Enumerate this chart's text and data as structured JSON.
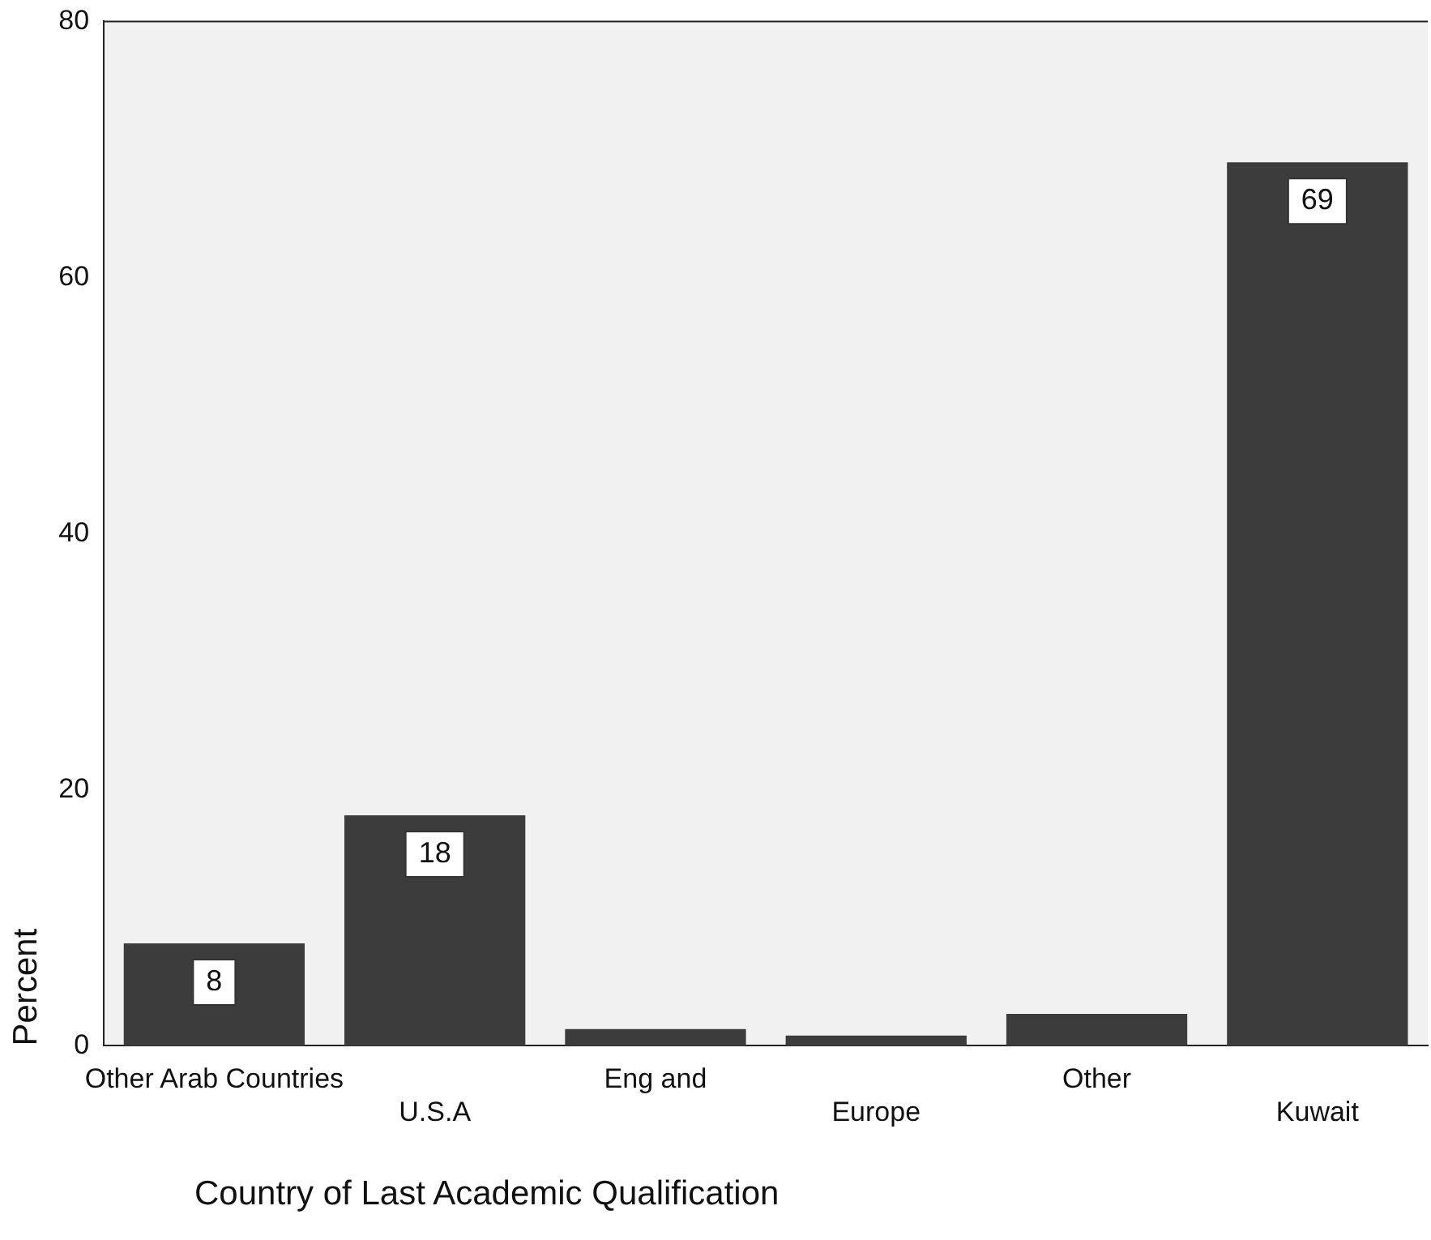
{
  "chart_data": {
    "type": "bar",
    "xlabel": "Country of Last Academic Qualification",
    "ylabel": "Percent",
    "categories": [
      "Other Arab Countries",
      "U.S.A",
      "Eng and",
      "Europe",
      "Other",
      "Kuwait"
    ],
    "values": [
      8,
      18,
      1.3,
      0.8,
      2.5,
      69
    ],
    "value_labels": [
      "8",
      "18",
      null,
      null,
      null,
      "69"
    ],
    "color": "#3c3c3c",
    "ylim": [
      0,
      80
    ],
    "yticks": [
      0,
      20,
      40,
      60,
      80
    ],
    "grid": false,
    "legend": false
  }
}
